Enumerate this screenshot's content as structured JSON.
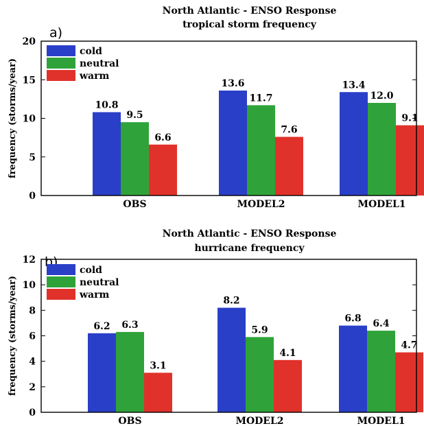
{
  "chart_data": [
    {
      "type": "bar",
      "panel_label": "a)",
      "title": "North Atlantic - ENSO Response",
      "subtitle": "tropical storm frequency",
      "xlabel": "",
      "ylabel": "frequency (storms/year)",
      "ylim": [
        0,
        20
      ],
      "yticks": [
        "0",
        "5",
        "10",
        "15",
        "20"
      ],
      "categories": [
        "OBS",
        "MODEL2",
        "MODEL1"
      ],
      "legend_position": "top-left",
      "series": [
        {
          "name": "cold",
          "color": "#2a3fc8",
          "values": [
            10.8,
            13.6,
            13.4
          ],
          "labels": [
            "10.8",
            "13.6",
            "13.4"
          ]
        },
        {
          "name": "neutral",
          "color": "#2fa33a",
          "values": [
            9.5,
            11.7,
            12.0
          ],
          "labels": [
            "9.5",
            "11.7",
            "12.0"
          ]
        },
        {
          "name": "warm",
          "color": "#e0322a",
          "values": [
            6.6,
            7.6,
            9.1
          ],
          "labels": [
            "6.6",
            "7.6",
            "9.1"
          ]
        }
      ]
    },
    {
      "type": "bar",
      "panel_label": "b)",
      "title": "North Atlantic - ENSO Response",
      "subtitle": "hurricane frequency",
      "xlabel": "",
      "ylabel": "frequency (storms/year)",
      "ylim": [
        0,
        12
      ],
      "yticks": [
        "0",
        "2",
        "4",
        "6",
        "8",
        "10",
        "12"
      ],
      "categories": [
        "OBS",
        "MODEL2",
        "MODEL1"
      ],
      "legend_position": "top-left",
      "series": [
        {
          "name": "cold",
          "color": "#2a3fc8",
          "values": [
            6.2,
            8.2,
            6.8
          ],
          "labels": [
            "6.2",
            "8.2",
            "6.8"
          ]
        },
        {
          "name": "neutral",
          "color": "#2fa33a",
          "values": [
            6.3,
            5.9,
            6.4
          ],
          "labels": [
            "6.3",
            "5.9",
            "6.4"
          ]
        },
        {
          "name": "warm",
          "color": "#e0322a",
          "values": [
            3.1,
            4.1,
            4.7
          ],
          "labels": [
            "3.1",
            "4.1",
            "4.7"
          ]
        }
      ]
    }
  ]
}
